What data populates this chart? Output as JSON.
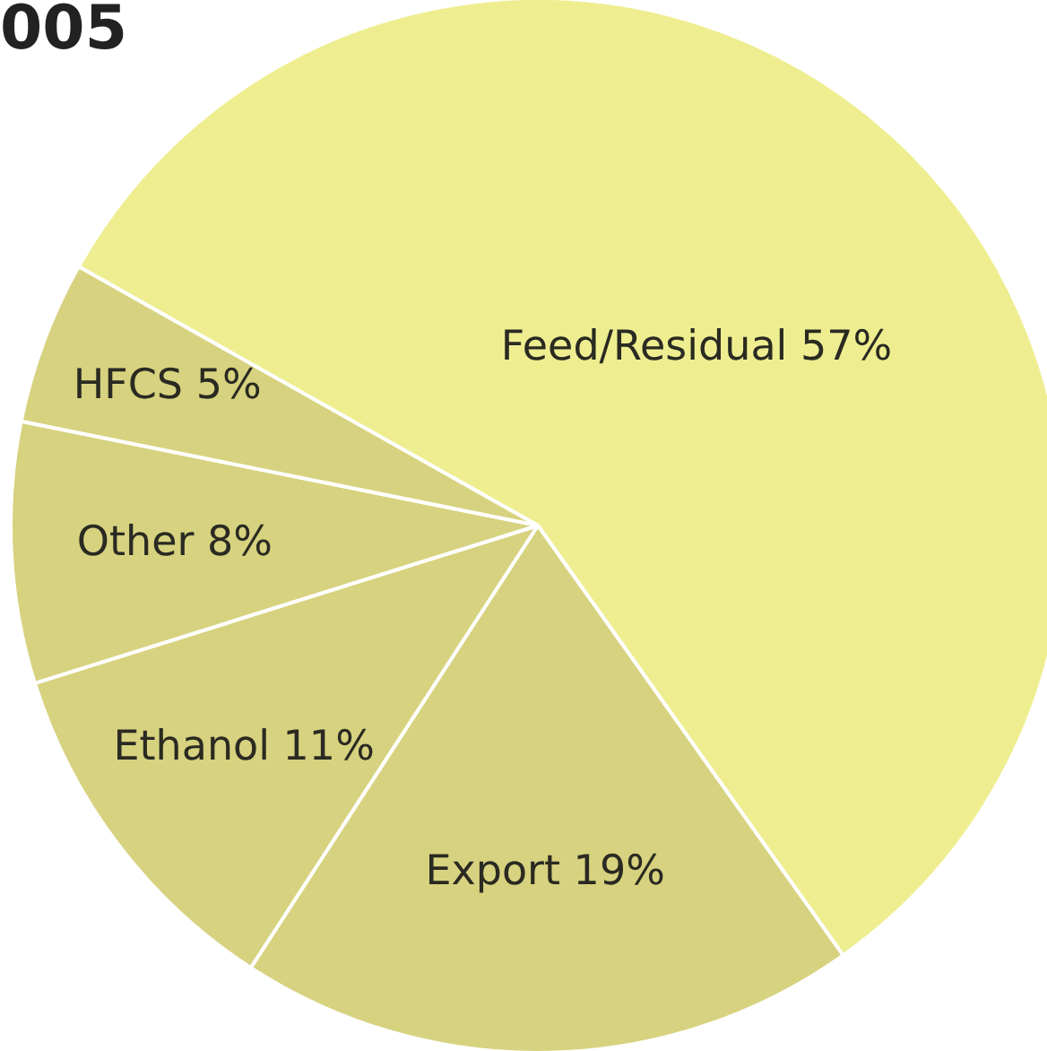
{
  "chart_data": {
    "type": "pie",
    "title": "005",
    "categories": [
      "Feed/Residual",
      "Export",
      "Ethanol",
      "Other",
      "HFCS"
    ],
    "values": [
      57,
      19,
      11,
      8,
      5
    ],
    "value_labels": [
      "57%",
      "19%",
      "11%",
      "8%",
      "5%"
    ],
    "colors": [
      "#eeee91",
      "#d7d27f",
      "#d7d27f",
      "#d7d27f",
      "#d7d27f"
    ],
    "legend": false
  }
}
